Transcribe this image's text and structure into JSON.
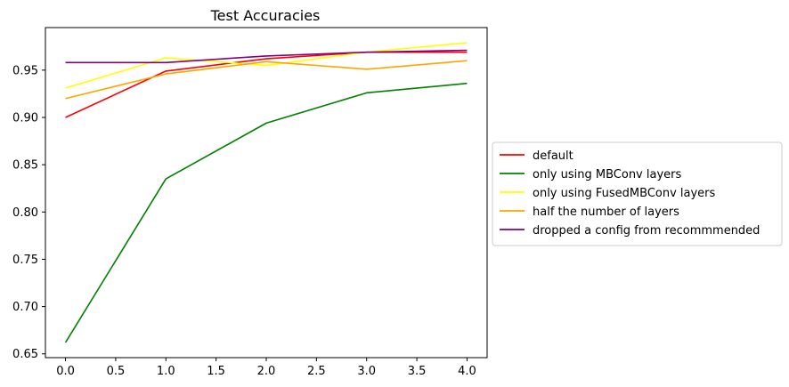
{
  "chart_data": {
    "type": "line",
    "title": "Test Accuracies",
    "xlabel": "",
    "ylabel": "",
    "x": [
      0,
      1,
      2,
      3,
      4
    ],
    "xlim": [
      -0.2,
      4.2
    ],
    "ylim": [
      0.646,
      0.995
    ],
    "xticks": [
      0.0,
      0.5,
      1.0,
      1.5,
      2.0,
      2.5,
      3.0,
      3.5,
      4.0
    ],
    "xtick_labels": [
      "0.0",
      "0.5",
      "1.0",
      "1.5",
      "2.0",
      "2.5",
      "3.0",
      "3.5",
      "4.0"
    ],
    "yticks": [
      0.65,
      0.7,
      0.75,
      0.8,
      0.85,
      0.9,
      0.95
    ],
    "ytick_labels": [
      "0.65",
      "0.70",
      "0.75",
      "0.80",
      "0.85",
      "0.90",
      "0.95"
    ],
    "grid": false,
    "legend_position": "center-right-outside",
    "series": [
      {
        "name": "default",
        "color": "#ff0000",
        "values": [
          0.9,
          0.949,
          0.962,
          0.969,
          0.969
        ]
      },
      {
        "name": "only using MBConv layers",
        "color": "#008000",
        "values": [
          0.662,
          0.835,
          0.894,
          0.926,
          0.936
        ]
      },
      {
        "name": "only using FusedMBConv layers",
        "color": "#ffff00",
        "values": [
          0.931,
          0.963,
          0.955,
          0.969,
          0.979
        ]
      },
      {
        "name": "half the number of layers",
        "color": "#ffa500",
        "values": [
          0.92,
          0.946,
          0.959,
          0.951,
          0.96
        ]
      },
      {
        "name": "dropped a config from recommmended",
        "color": "#800080",
        "values": [
          0.958,
          0.958,
          0.965,
          0.969,
          0.971
        ]
      }
    ]
  }
}
